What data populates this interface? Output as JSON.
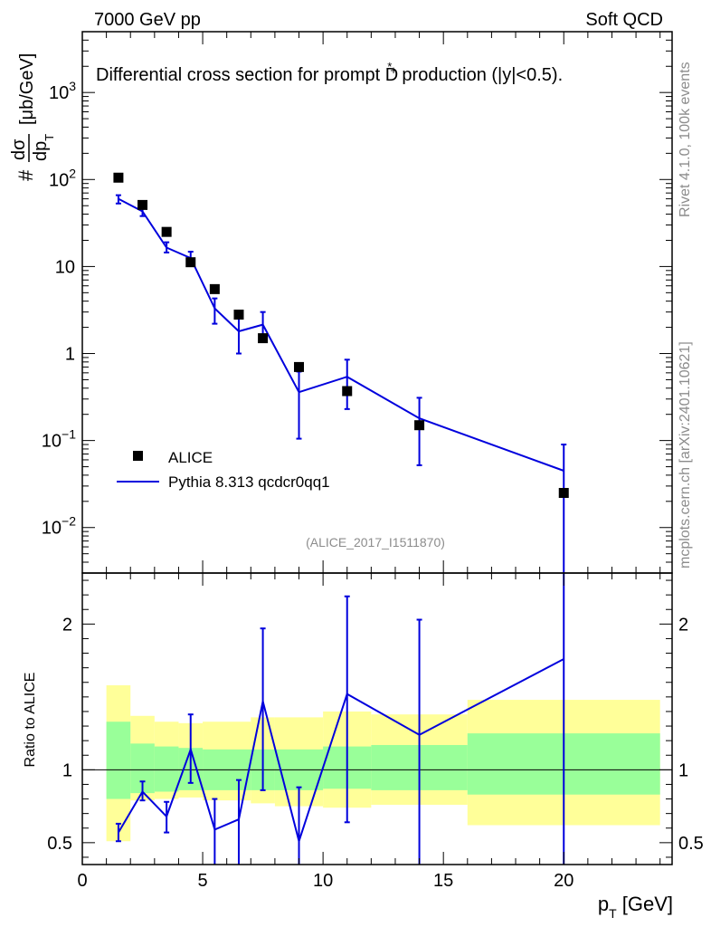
{
  "header": {
    "left": "7000 GeV pp",
    "right": "Soft QCD"
  },
  "side_labels": {
    "rivet": "Rivet 4.1.0,  100k events",
    "mcplots": "mcplots.cern.ch [arXiv:2401.10621]"
  },
  "chart_data": [
    {
      "type": "scatter",
      "title": "Differential cross section for prompt D*+ production (|y|<0.5).",
      "title_parts": {
        "before": "Differential cross section for prompt D",
        "sup": "*",
        "sup2": "+",
        "after": " production (|y|<0.5)."
      },
      "ylabel": "# dσ/dp_T [μb/GeV]",
      "ylabel_parts": {
        "hash": "#",
        "num": "dσ",
        "den": "dp",
        "den_sub": "T",
        "unit": "[μb/GeV]"
      },
      "yscale": "log",
      "ylim": [
        0.003,
        5000
      ],
      "xlim": [
        0,
        24.5
      ],
      "y_ticks": [
        {
          "value": 0.01,
          "label": "10",
          "sup": "−2"
        },
        {
          "value": 0.1,
          "label": "10",
          "sup": "−1"
        },
        {
          "value": 1,
          "label": "1",
          "sup": ""
        },
        {
          "value": 10,
          "label": "10",
          "sup": ""
        },
        {
          "value": 100,
          "label": "10",
          "sup": "2"
        },
        {
          "value": 1000,
          "label": "10",
          "sup": "3"
        }
      ],
      "legend_position": "bottom-left",
      "watermark": "(ALICE_2017_I1511870)",
      "series": [
        {
          "name": "ALICE",
          "style": "markers",
          "color": "#000000",
          "x": [
            1.5,
            2.5,
            3.5,
            4.5,
            5.5,
            6.5,
            7.5,
            9,
            11,
            14,
            20
          ],
          "y": [
            105,
            51,
            25,
            11.2,
            5.5,
            2.8,
            1.5,
            0.7,
            0.37,
            0.15,
            0.025
          ]
        },
        {
          "name": "Pythia 8.313 qcdcr0qq1",
          "style": "line",
          "color": "#0000dd",
          "x": [
            1.5,
            2.5,
            3.5,
            4.5,
            5.5,
            6.5,
            7.5,
            9,
            11,
            14,
            20
          ],
          "y": [
            60,
            43,
            16.5,
            12.5,
            3.3,
            1.8,
            2.15,
            0.36,
            0.54,
            0.18,
            0.045
          ],
          "err_low": [
            53,
            38,
            14.5,
            10.5,
            2.2,
            1.0,
            1.35,
            0.105,
            0.23,
            0.052,
            0.0001
          ],
          "err_high": [
            66,
            48,
            19,
            14.8,
            4.3,
            2.6,
            3.0,
            0.62,
            0.85,
            0.31,
            0.09
          ]
        }
      ]
    },
    {
      "type": "line",
      "ylabel": "Ratio to ALICE",
      "xlabel": "p_T [GeV]",
      "xlabel_parts": {
        "p": "p",
        "sub": "T",
        "unit": " [GeV]"
      },
      "ylim": [
        0.35,
        2.35
      ],
      "xlim": [
        0,
        24.5
      ],
      "x_ticks": [
        0,
        5,
        10,
        15,
        20
      ],
      "y_ticks": [
        0.5,
        1,
        2
      ],
      "reference": 1,
      "band_colors": {
        "inner": "#99ff99",
        "outer": "#ffff99"
      },
      "bands": [
        {
          "x0": 1,
          "x1": 2,
          "in_lo": 0.8,
          "in_hi": 1.33,
          "out_lo": 0.51,
          "out_hi": 1.58
        },
        {
          "x0": 2,
          "x1": 3,
          "in_lo": 0.84,
          "in_hi": 1.18,
          "out_lo": 0.79,
          "out_hi": 1.37
        },
        {
          "x0": 3,
          "x1": 4,
          "in_lo": 0.85,
          "in_hi": 1.16,
          "out_lo": 0.8,
          "out_hi": 1.33
        },
        {
          "x0": 4,
          "x1": 5,
          "in_lo": 0.86,
          "in_hi": 1.15,
          "out_lo": 0.81,
          "out_hi": 1.32
        },
        {
          "x0": 5,
          "x1": 7,
          "in_lo": 0.86,
          "in_hi": 1.14,
          "out_lo": 0.79,
          "out_hi": 1.33
        },
        {
          "x0": 7,
          "x1": 8,
          "in_lo": 0.86,
          "in_hi": 1.14,
          "out_lo": 0.77,
          "out_hi": 1.36
        },
        {
          "x0": 8,
          "x1": 10,
          "in_lo": 0.86,
          "in_hi": 1.14,
          "out_lo": 0.75,
          "out_hi": 1.36
        },
        {
          "x0": 10,
          "x1": 12,
          "in_lo": 0.87,
          "in_hi": 1.16,
          "out_lo": 0.74,
          "out_hi": 1.4
        },
        {
          "x0": 12,
          "x1": 16,
          "in_lo": 0.86,
          "in_hi": 1.17,
          "out_lo": 0.76,
          "out_hi": 1.38
        },
        {
          "x0": 16,
          "x1": 24,
          "in_lo": 0.83,
          "in_hi": 1.25,
          "out_lo": 0.62,
          "out_hi": 1.48
        }
      ],
      "series": [
        {
          "name": "Pythia 8.313 qcdcr0qq1",
          "color": "#0000dd",
          "x": [
            1.5,
            2.5,
            3.5,
            4.5,
            5.5,
            6.5,
            7.5,
            9,
            11,
            14,
            20
          ],
          "y": [
            0.57,
            0.85,
            0.68,
            1.14,
            0.59,
            0.66,
            1.47,
            0.51,
            1.52,
            1.24,
            1.76
          ],
          "err_low": [
            0.51,
            0.79,
            0.57,
            0.91,
            0.2,
            0.2,
            0.86,
            0.2,
            0.64,
            0.2,
            0.2
          ],
          "err_high": [
            0.63,
            0.92,
            0.78,
            1.38,
            0.8,
            0.93,
            1.97,
            0.88,
            2.19,
            2.03,
            2.6
          ]
        }
      ]
    }
  ]
}
